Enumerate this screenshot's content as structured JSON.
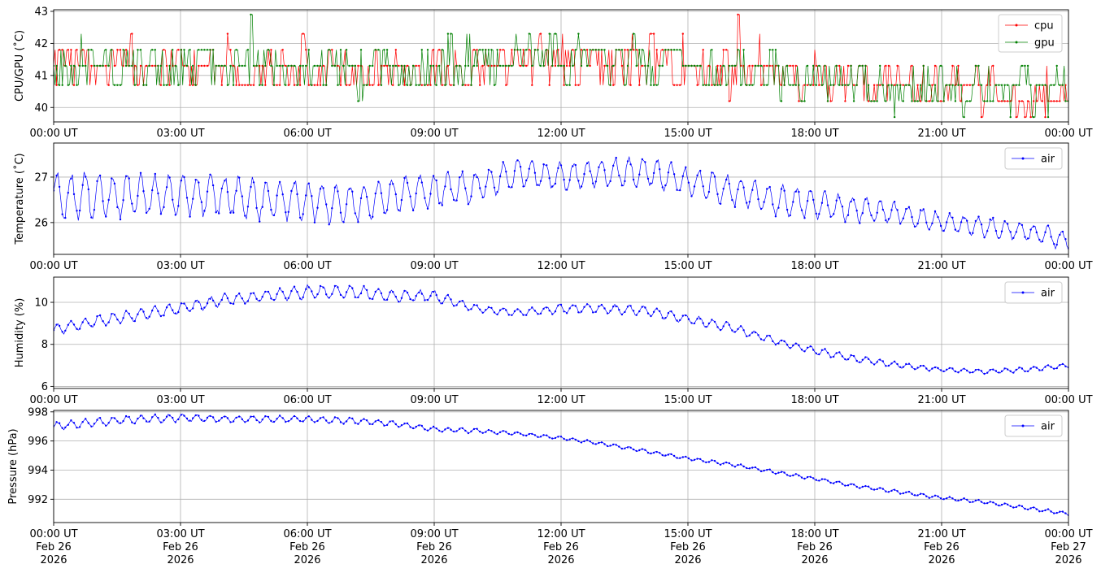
{
  "chart_data": [
    {
      "type": "line",
      "ylabel": "CPU/GPU (˚C)",
      "ylim": [
        39.55,
        43.05
      ],
      "yticks": [
        40,
        41,
        42,
        43
      ],
      "xlim_hours": [
        0,
        24
      ],
      "xticks_hours": [
        0,
        3,
        6,
        9,
        12,
        15,
        18,
        21,
        24
      ],
      "xtick_labels": [
        "00:00 UT",
        "03:00 UT",
        "06:00 UT",
        "09:00 UT",
        "12:00 UT",
        "15:00 UT",
        "18:00 UT",
        "21:00 UT",
        "00:00 UT"
      ],
      "grid": true,
      "legend": "top-right",
      "series": [
        {
          "name": "cpu",
          "color": "#ff0000",
          "x_hours": [
            0,
            1,
            2,
            3,
            4,
            5,
            6,
            7,
            8,
            9,
            10,
            11,
            12,
            13,
            14,
            15,
            16,
            17,
            18,
            19,
            20,
            21,
            22,
            23,
            24
          ],
          "values": [
            41.3,
            41.3,
            41.2,
            41.3,
            41.2,
            41.1,
            41.1,
            41.0,
            41.1,
            41.2,
            41.3,
            41.5,
            41.5,
            41.4,
            41.3,
            41.2,
            41.1,
            41.0,
            40.9,
            40.8,
            40.7,
            40.6,
            40.5,
            40.4,
            40.3
          ],
          "min": [
            40.2,
            40.2,
            40.2,
            40.7,
            40.7,
            40.2,
            40.7,
            40.7,
            40.2,
            40.7,
            40.7,
            40.7,
            40.7,
            40.7,
            40.7,
            40.7,
            40.2,
            40.7,
            40.2,
            40.2,
            40.2,
            40.2,
            39.7,
            39.7,
            39.7
          ],
          "max": [
            42.3,
            42.3,
            42.3,
            42.3,
            42.3,
            42.3,
            42.3,
            41.8,
            41.8,
            41.8,
            42.3,
            42.3,
            42.3,
            42.9,
            42.3,
            42.3,
            42.9,
            42.3,
            41.8,
            41.3,
            41.3,
            41.3,
            41.3,
            41.3,
            40.7
          ]
        },
        {
          "name": "gpu",
          "color": "#008000",
          "x_hours": [
            0,
            1,
            2,
            3,
            4,
            5,
            6,
            7,
            8,
            9,
            10,
            11,
            12,
            13,
            14,
            15,
            16,
            17,
            18,
            19,
            20,
            21,
            22,
            23,
            24
          ],
          "values": [
            41.3,
            41.3,
            41.3,
            41.3,
            41.2,
            41.1,
            41.1,
            41.1,
            41.1,
            41.3,
            41.4,
            41.5,
            41.5,
            41.5,
            41.4,
            41.3,
            41.1,
            41.0,
            40.9,
            40.8,
            40.7,
            40.7,
            40.6,
            40.5,
            40.4
          ],
          "min": [
            40.7,
            40.7,
            40.7,
            40.7,
            40.7,
            40.2,
            40.7,
            40.2,
            40.2,
            40.7,
            40.7,
            40.7,
            40.7,
            40.7,
            40.7,
            40.7,
            40.2,
            40.2,
            40.2,
            40.2,
            39.7,
            39.7,
            39.7,
            39.7,
            39.7
          ],
          "max": [
            41.9,
            42.4,
            41.9,
            42.4,
            42.4,
            42.9,
            41.9,
            41.9,
            41.9,
            42.4,
            42.4,
            42.4,
            42.4,
            42.4,
            42.4,
            41.9,
            41.9,
            42.4,
            41.3,
            41.3,
            41.3,
            41.3,
            41.3,
            41.3,
            41.3
          ]
        }
      ]
    },
    {
      "type": "line",
      "ylabel": "Temperature (˚C)",
      "ylim": [
        25.3,
        27.75
      ],
      "yticks": [
        26,
        27
      ],
      "xlim_hours": [
        0,
        24
      ],
      "xticks_hours": [
        0,
        3,
        6,
        9,
        12,
        15,
        18,
        21,
        24
      ],
      "xtick_labels": [
        "00:00 UT",
        "03:00 UT",
        "06:00 UT",
        "09:00 UT",
        "12:00 UT",
        "15:00 UT",
        "18:00 UT",
        "21:00 UT",
        "00:00 UT"
      ],
      "grid": true,
      "legend": "top-right",
      "series": [
        {
          "name": "air",
          "color": "#0000ff",
          "x_hours": [
            0,
            1,
            2,
            3,
            4,
            5,
            6,
            7,
            8,
            9,
            10,
            11,
            12,
            13,
            14,
            15,
            16,
            17,
            18,
            19,
            20,
            21,
            22,
            23,
            24
          ],
          "values": [
            26.6,
            26.6,
            26.6,
            26.6,
            26.6,
            26.5,
            26.5,
            26.4,
            26.6,
            26.7,
            26.8,
            27.1,
            27.0,
            27.1,
            27.1,
            26.9,
            26.7,
            26.5,
            26.4,
            26.3,
            26.2,
            26.0,
            25.9,
            25.8,
            25.6
          ],
          "amplitude": [
            0.45,
            0.45,
            0.45,
            0.4,
            0.4,
            0.4,
            0.4,
            0.4,
            0.35,
            0.35,
            0.3,
            0.3,
            0.3,
            0.3,
            0.3,
            0.3,
            0.3,
            0.3,
            0.3,
            0.25,
            0.2,
            0.2,
            0.2,
            0.2,
            0.2
          ]
        }
      ]
    },
    {
      "type": "line",
      "ylabel": "Humidity (%)",
      "ylim": [
        5.9,
        11.2
      ],
      "yticks": [
        6,
        8,
        10
      ],
      "xlim_hours": [
        0,
        24
      ],
      "xticks_hours": [
        0,
        3,
        6,
        9,
        12,
        15,
        18,
        21,
        24
      ],
      "xtick_labels": [
        "00:00 UT",
        "03:00 UT",
        "06:00 UT",
        "09:00 UT",
        "12:00 UT",
        "15:00 UT",
        "18:00 UT",
        "21:00 UT",
        "00:00 UT"
      ],
      "grid": true,
      "legend": "top-right",
      "series": [
        {
          "name": "air",
          "color": "#0000ff",
          "x_hours": [
            0,
            1,
            2,
            3,
            4,
            5,
            6,
            7,
            8,
            9,
            10,
            11,
            12,
            13,
            14,
            15,
            16,
            17,
            18,
            19,
            20,
            21,
            22,
            23,
            24
          ],
          "values": [
            8.7,
            9.1,
            9.4,
            9.7,
            10.1,
            10.3,
            10.5,
            10.5,
            10.3,
            10.3,
            9.7,
            9.5,
            9.7,
            9.7,
            9.6,
            9.2,
            8.8,
            8.2,
            7.7,
            7.3,
            7.0,
            6.8,
            6.7,
            6.8,
            7.0
          ],
          "amplitude": [
            0.25,
            0.25,
            0.25,
            0.25,
            0.25,
            0.25,
            0.3,
            0.3,
            0.25,
            0.25,
            0.15,
            0.15,
            0.2,
            0.2,
            0.2,
            0.2,
            0.2,
            0.15,
            0.15,
            0.15,
            0.12,
            0.1,
            0.1,
            0.1,
            0.1
          ]
        }
      ]
    },
    {
      "type": "line",
      "ylabel": "Pressure (hPa)",
      "ylim": [
        990.4,
        998.1
      ],
      "yticks": [
        992,
        994,
        996,
        998
      ],
      "xlim_hours": [
        0,
        24
      ],
      "xticks_hours": [
        0,
        3,
        6,
        9,
        12,
        15,
        18,
        21,
        24
      ],
      "xtick_labels": [
        "00:00 UT\nFeb 26\n2026",
        "03:00 UT\nFeb 26\n2026",
        "06:00 UT\nFeb 26\n2026",
        "09:00 UT\nFeb 26\n2026",
        "12:00 UT\nFeb 26\n2026",
        "15:00 UT\nFeb 26\n2026",
        "18:00 UT\nFeb 26\n2026",
        "21:00 UT\nFeb 26\n2026",
        "00:00 UT\nFeb 27\n2026"
      ],
      "grid": true,
      "legend": "top-right",
      "series": [
        {
          "name": "air",
          "color": "#0000ff",
          "x_hours": [
            0,
            1,
            2,
            3,
            4,
            5,
            6,
            7,
            8,
            9,
            10,
            11,
            12,
            13,
            14,
            15,
            16,
            17,
            18,
            19,
            20,
            21,
            22,
            23,
            24
          ],
          "values": [
            997.0,
            997.3,
            997.5,
            997.6,
            997.5,
            997.5,
            997.5,
            997.4,
            997.2,
            996.8,
            996.7,
            996.5,
            996.2,
            995.8,
            995.3,
            994.8,
            994.4,
            993.9,
            993.4,
            992.9,
            992.5,
            992.1,
            991.8,
            991.4,
            991.0
          ],
          "amplitude": [
            0.25,
            0.25,
            0.25,
            0.25,
            0.2,
            0.2,
            0.2,
            0.2,
            0.15,
            0.15,
            0.15,
            0.1,
            0.1,
            0.1,
            0.1,
            0.1,
            0.1,
            0.1,
            0.1,
            0.1,
            0.1,
            0.1,
            0.1,
            0.1,
            0.1
          ]
        }
      ]
    }
  ]
}
